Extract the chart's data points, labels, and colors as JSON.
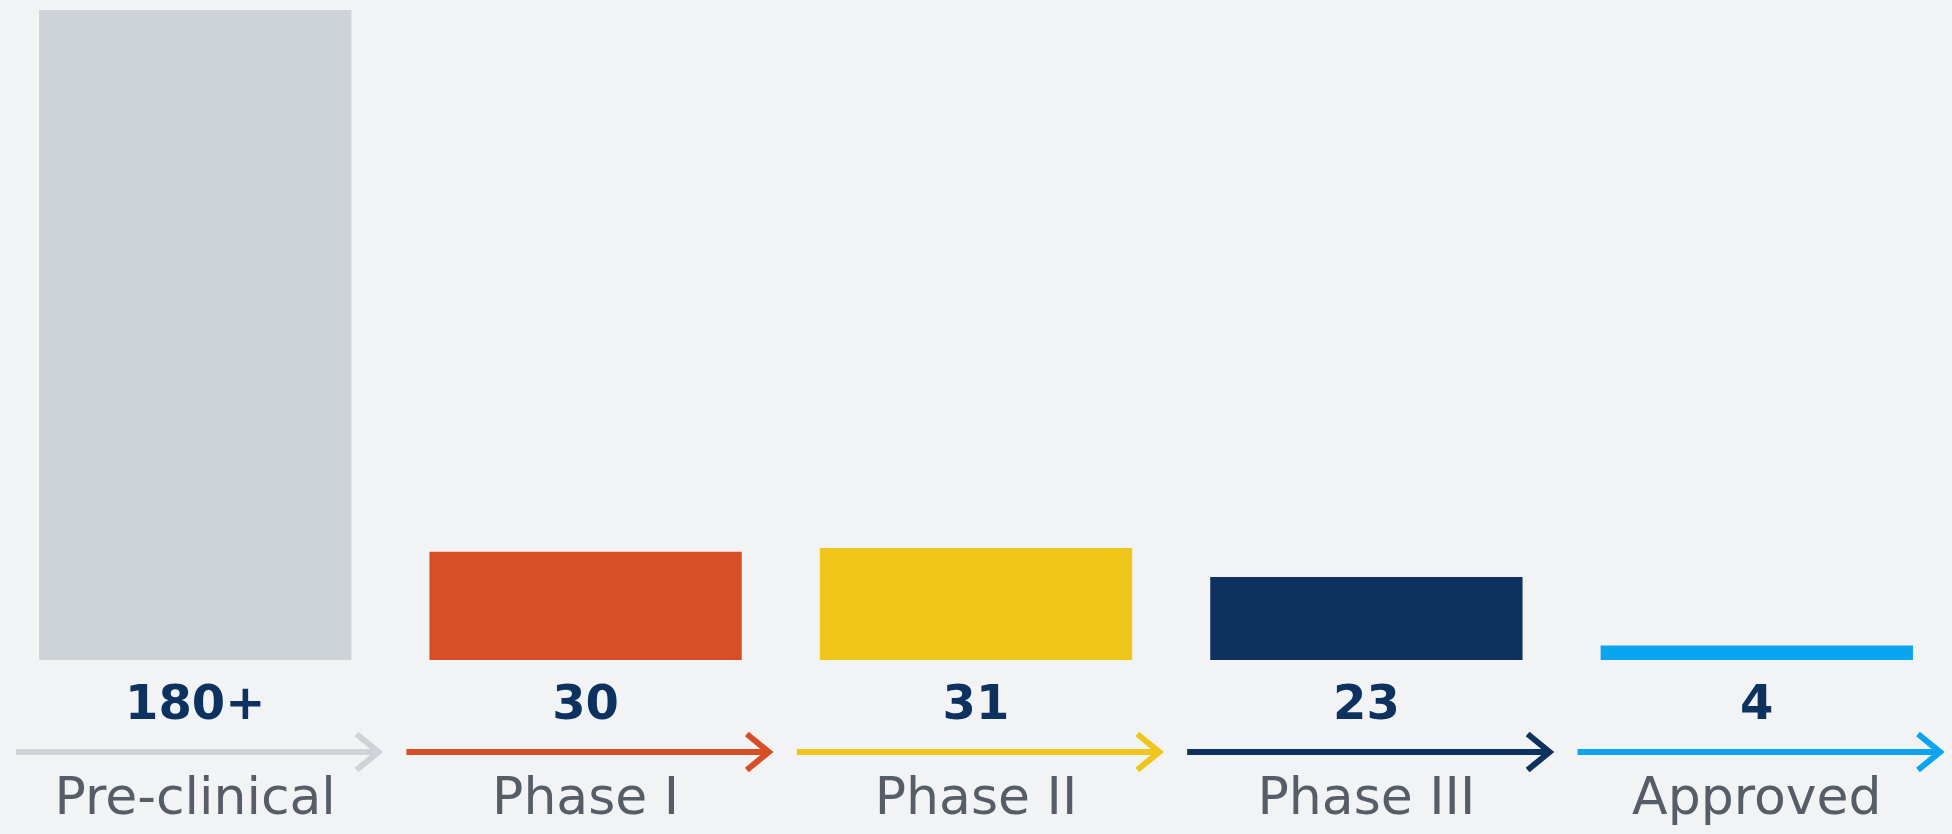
{
  "chart_data": {
    "type": "bar",
    "categories": [
      "Pre-clinical",
      "Phase I",
      "Phase II",
      "Phase III",
      "Approved"
    ],
    "values": [
      180,
      30,
      31,
      23,
      4
    ],
    "value_labels": [
      "180+",
      "30",
      "31",
      "23",
      "4"
    ],
    "colors": [
      "#cdd3d9",
      "#d94f25",
      "#f0c61a",
      "#0d3260",
      "#0aa5f0"
    ]
  }
}
